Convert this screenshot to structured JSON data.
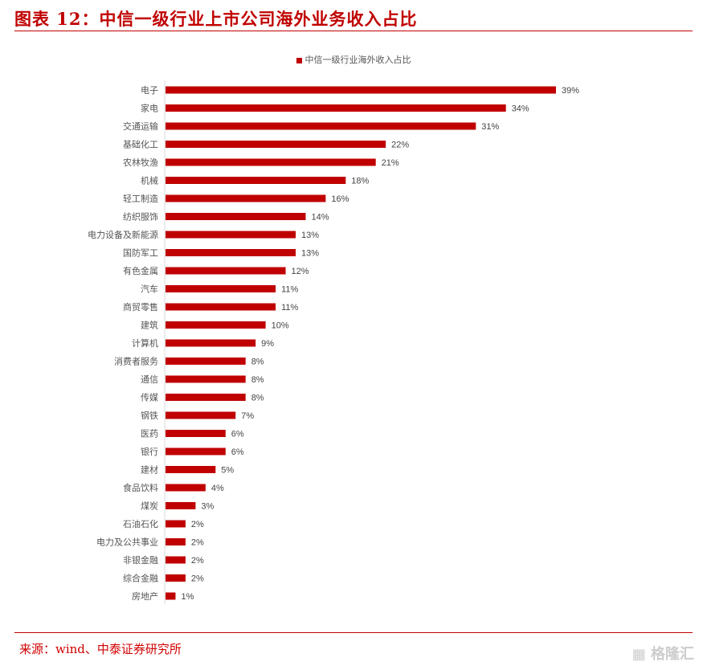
{
  "title": "图表 12：中信一级行业上市公司海外业务收入占比",
  "source": "来源：wind、中泰证券研究所",
  "watermark": "格隆汇",
  "chart_data": {
    "type": "bar",
    "orientation": "horizontal",
    "legend": "中信一级行业海外收入占比",
    "legend_position": "top-center",
    "color": "#c00000",
    "categories": [
      "电子",
      "家电",
      "交通运输",
      "基础化工",
      "农林牧渔",
      "机械",
      "轻工制造",
      "纺织服饰",
      "电力设备及新能源",
      "国防军工",
      "有色金属",
      "汽车",
      "商贸零售",
      "建筑",
      "计算机",
      "消费者服务",
      "通信",
      "传媒",
      "钢铁",
      "医药",
      "银行",
      "建材",
      "食品饮料",
      "煤炭",
      "石油石化",
      "电力及公共事业",
      "非银金融",
      "综合金融",
      "房地产"
    ],
    "values": [
      39,
      34,
      31,
      22,
      21,
      18,
      16,
      14,
      13,
      13,
      12,
      11,
      11,
      10,
      9,
      8,
      8,
      8,
      7,
      6,
      6,
      5,
      4,
      3,
      2,
      2,
      2,
      2,
      1
    ],
    "labels": [
      "39%",
      "34%",
      "31%",
      "22%",
      "21%",
      "18%",
      "16%",
      "14%",
      "13%",
      "13%",
      "12%",
      "11%",
      "11%",
      "10%",
      "9%",
      "8%",
      "8%",
      "8%",
      "7%",
      "6%",
      "6%",
      "5%",
      "4%",
      "3%",
      "2%",
      "2%",
      "2%",
      "2%",
      "1%"
    ],
    "unit": "%",
    "grid": false
  }
}
